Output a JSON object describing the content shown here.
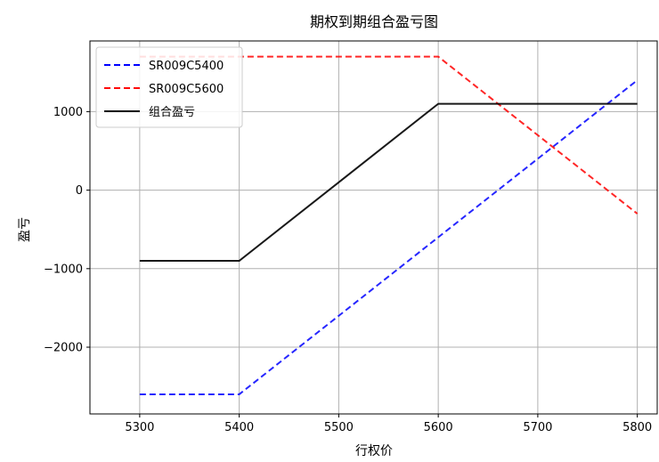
{
  "chart_data": {
    "type": "line",
    "title": "期权到期组合盈亏图",
    "xlabel": "行权价",
    "ylabel": "盈亏",
    "x": [
      5300,
      5400,
      5500,
      5600,
      5700,
      5800
    ],
    "xticks": [
      "5300",
      "5400",
      "5500",
      "5600",
      "5700",
      "5800"
    ],
    "yticks": [
      "-2000",
      "-1000",
      "0",
      "1000"
    ],
    "xlim": [
      5250,
      5820
    ],
    "ylim": [
      -2850,
      1900
    ],
    "grid": true,
    "legend_position": "upper-left",
    "series": [
      {
        "name": "SR009C5400",
        "color": "#0000ff",
        "style": "dashed",
        "values": [
          -2600,
          -2600,
          -1600,
          -600,
          400,
          1400
        ]
      },
      {
        "name": "SR009C5600",
        "color": "#ff0000",
        "style": "dashed",
        "values": [
          1700,
          1700,
          1700,
          1700,
          700,
          -300
        ]
      },
      {
        "name": "组合盈亏",
        "color": "#000000",
        "style": "solid",
        "values": [
          -900,
          -900,
          100,
          1100,
          1100,
          1100
        ]
      }
    ]
  }
}
